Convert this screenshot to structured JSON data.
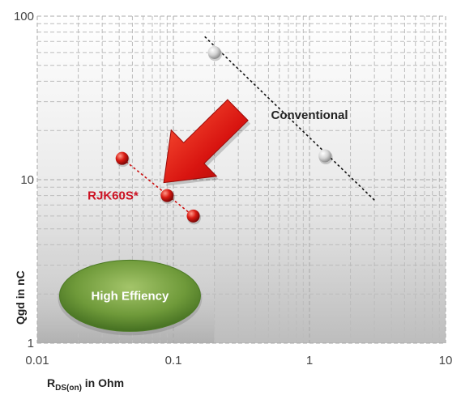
{
  "chart_data": {
    "type": "scatter",
    "x_scale": "log",
    "y_scale": "log",
    "xlim": [
      0.01,
      10
    ],
    "ylim": [
      1,
      100
    ],
    "x_ticks": [
      "0.01",
      "0.1",
      "1",
      "10"
    ],
    "y_ticks": [
      "1",
      "10",
      "100"
    ],
    "xlabel": {
      "main": "R",
      "sub": "DS(on)",
      "suffix": " in Ohm"
    },
    "ylabel": "Qgd in nC",
    "grid": true,
    "series": [
      {
        "name": "Conventional",
        "color": "#d8d8d8",
        "label_color": "#222222",
        "points": [
          {
            "x": 0.2,
            "y": 60
          },
          {
            "x": 1.3,
            "y": 14
          }
        ],
        "trend": [
          {
            "x": 0.17,
            "y": 75
          },
          {
            "x": 3.0,
            "y": 7.5
          }
        ]
      },
      {
        "name": "RJK60S*",
        "color": "#cc1111",
        "label_color": "#cc1122",
        "points": [
          {
            "x": 0.042,
            "y": 13.5
          },
          {
            "x": 0.09,
            "y": 8
          },
          {
            "x": 0.14,
            "y": 6
          }
        ],
        "trend": [
          {
            "x": 0.042,
            "y": 13.5
          },
          {
            "x": 0.14,
            "y": 6
          }
        ]
      }
    ],
    "region": {
      "label": "High Effiency",
      "color": "#6f9a3a"
    },
    "arrow": {
      "color": "#cc1111",
      "direction": "toward lower-left"
    }
  }
}
